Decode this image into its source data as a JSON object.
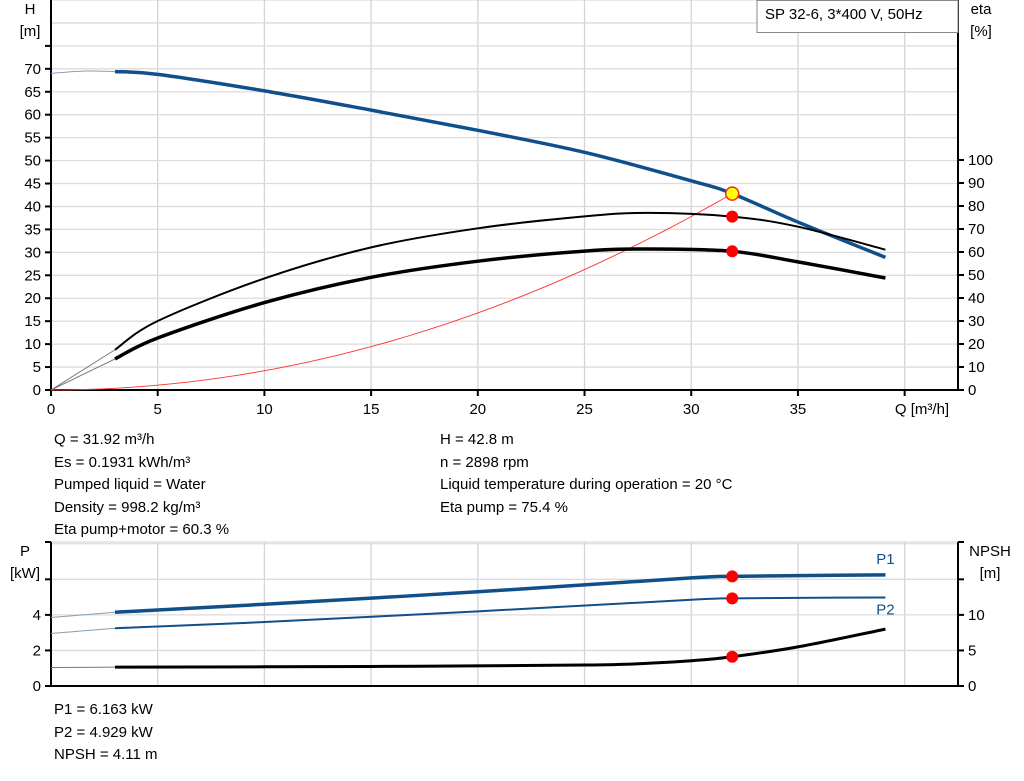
{
  "chart_data": [
    {
      "type": "line",
      "title": "SP 32-6, 3*400 V, 50Hz",
      "xlabel": "Q [m³/h]",
      "ylabel": "H\n[m]",
      "ylabel_line1": "H",
      "ylabel_line2": "[m]",
      "y2label_line1": "eta",
      "y2label_line2": "[%]",
      "xlim": [
        0,
        42.5
      ],
      "ylim": [
        0,
        85
      ],
      "y2lim": [
        0,
        100
      ],
      "xticks": [
        0,
        5,
        10,
        15,
        20,
        25,
        30,
        35
      ],
      "yticks": [
        0,
        5,
        10,
        15,
        20,
        25,
        30,
        35,
        40,
        45,
        50,
        55,
        60,
        65,
        70
      ],
      "y2ticks": [
        0,
        10,
        20,
        30,
        40,
        50,
        60,
        70,
        80,
        90,
        100
      ],
      "grid": true,
      "colors": {
        "head": "#0f4f8a",
        "efficiency": "#000000",
        "system": "#ff3030",
        "marker": "#ff0000",
        "op_marker": "#ffff00"
      },
      "series": [
        {
          "key": "H",
          "axis": "left",
          "color": "#0f4f8a",
          "width": 3.5,
          "thin_x": [
            0,
            1.5,
            3
          ],
          "thin_y": [
            69,
            69.5,
            69.4
          ],
          "x": [
            3,
            5,
            10,
            15,
            20,
            25,
            30,
            31.92,
            35,
            39.1
          ],
          "y": [
            69.4,
            68.8,
            65.2,
            61,
            56.6,
            51.8,
            45.6,
            42.8,
            36.6,
            28.9
          ]
        },
        {
          "key": "eta_pump",
          "axis": "right",
          "color": "#000000",
          "width": 2,
          "thin_x": [
            0,
            3
          ],
          "thin_y": [
            0,
            17.5
          ],
          "x": [
            3,
            5,
            10,
            15,
            20,
            25,
            28,
            31.92,
            35,
            39.1
          ],
          "y": [
            17.5,
            30,
            48.5,
            62,
            70.3,
            75.5,
            77,
            75.4,
            71,
            61
          ]
        },
        {
          "key": "eta_total",
          "axis": "right",
          "color": "#000000",
          "width": 3.5,
          "thin_x": [
            0,
            3
          ],
          "thin_y": [
            0,
            13.5
          ],
          "x": [
            3,
            5,
            10,
            15,
            20,
            25,
            28,
            31.92,
            35,
            39.1
          ],
          "y": [
            13.5,
            22.6,
            38,
            49,
            56,
            60.4,
            61.3,
            60.3,
            55.7,
            48.7
          ]
        }
      ],
      "system_curve": {
        "axis": "left",
        "x_end": 31.92,
        "y_end": 42.8,
        "shape": "parabola"
      },
      "operating_point": {
        "Q": 31.92,
        "H": 42.8,
        "eta_pump": 75.4,
        "eta_total": 60.3
      }
    },
    {
      "type": "line",
      "ylabel_line1": "P",
      "ylabel_line2": "[kW]",
      "y2label_line1": "NPSH",
      "y2label_line2": "[m]",
      "xlim": [
        0,
        42.5
      ],
      "ylim": [
        0,
        8.1
      ],
      "y2lim": [
        0,
        20.25
      ],
      "yticks": [
        0,
        2,
        4,
        6
      ],
      "yticklabels": [
        "0",
        "2",
        "4",
        ""
      ],
      "y2ticks": [
        0,
        5,
        10,
        15
      ],
      "y2ticklabels": [
        "0",
        "5",
        "10",
        ""
      ],
      "grid": true,
      "series": [
        {
          "name": "P1",
          "axis": "left",
          "color": "#0f4f8a",
          "width": 3.5,
          "thin_x": [
            0,
            3
          ],
          "thin_y": [
            3.85,
            4.15
          ],
          "x": [
            3,
            10,
            20,
            30,
            31.92,
            35,
            39.1
          ],
          "y": [
            4.15,
            4.6,
            5.3,
            6.08,
            6.163,
            6.21,
            6.25
          ]
        },
        {
          "name": "P2",
          "axis": "left",
          "color": "#0f4f8a",
          "width": 2,
          "thin_x": [
            0,
            3
          ],
          "thin_y": [
            2.95,
            3.25
          ],
          "x": [
            3,
            10,
            20,
            30,
            31.92,
            35,
            39.1
          ],
          "y": [
            3.25,
            3.6,
            4.2,
            4.85,
            4.929,
            4.96,
            4.98
          ]
        },
        {
          "key": "NPSH",
          "axis": "right",
          "color": "#000000",
          "width": 3,
          "thin_x": [
            0,
            3
          ],
          "thin_y": [
            2.6,
            2.65
          ],
          "x": [
            3,
            15,
            25,
            28,
            30,
            31.92,
            35,
            39.1
          ],
          "y": [
            2.65,
            2.75,
            2.95,
            3.2,
            3.55,
            4.11,
            5.5,
            8.0
          ]
        }
      ],
      "operating_point": {
        "Q": 31.92,
        "P1": 6.163,
        "P2": 4.929,
        "NPSH": 4.11
      }
    }
  ],
  "info_left": [
    "Q = 31.92 m³/h",
    "Es = 0.1931 kWh/m³",
    "Pumped liquid = Water",
    "Density = 998.2 kg/m³",
    "Eta pump+motor = 60.3 %"
  ],
  "info_right": [
    "H = 42.8 m",
    "n = 2898 rpm",
    "Liquid temperature during operation = 20 °C",
    "Eta pump = 75.4 %"
  ],
  "info_bottom": [
    "P1 = 6.163 kW",
    "P2 = 4.929 kW",
    "NPSH = 4.11 m"
  ]
}
